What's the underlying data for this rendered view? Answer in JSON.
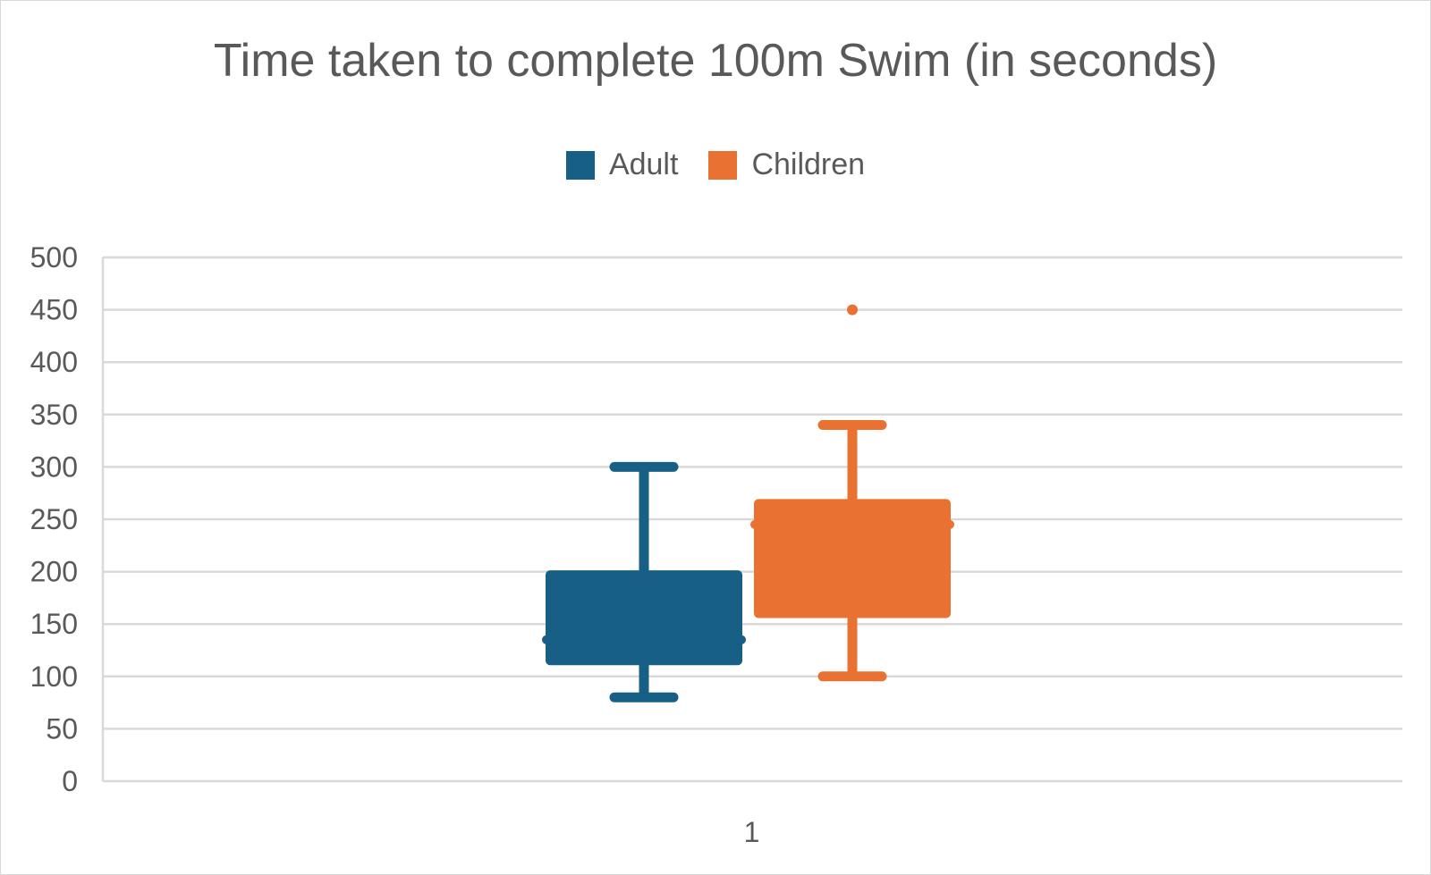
{
  "chart_data": {
    "type": "box",
    "title": "Time taken to complete 100m Swim (in seconds)",
    "categories": [
      "1"
    ],
    "ylim": [
      0,
      500
    ],
    "yticks": [
      0,
      50,
      100,
      150,
      200,
      250,
      300,
      350,
      400,
      450,
      500
    ],
    "ytick_labels": [
      "0",
      "50",
      "100",
      "150",
      "200",
      "250",
      "300",
      "350",
      "400",
      "450",
      "500"
    ],
    "grid": true,
    "legend_position": "top",
    "series": [
      {
        "name": "Adult",
        "color": "#175f84",
        "min": 80,
        "q1": 115,
        "median": 135,
        "q3": 197,
        "max": 300,
        "outliers": []
      },
      {
        "name": "Children",
        "color": "#e97132",
        "min": 100,
        "q1": 160,
        "median": 245,
        "q3": 265,
        "max": 340,
        "outliers": [
          450
        ]
      }
    ]
  }
}
